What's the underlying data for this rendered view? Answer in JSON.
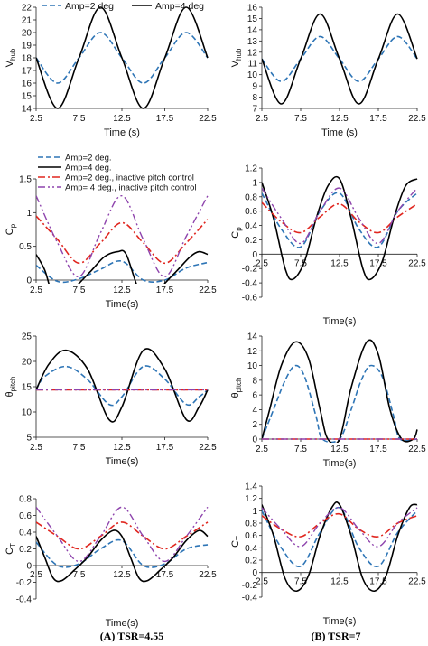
{
  "captions": {
    "left": "(A) TSR=4.55",
    "right": "(B) TSR=7"
  },
  "styles": {
    "a2": {
      "color": "#2e75b6",
      "dash": "6,3",
      "width": 1.6
    },
    "a4": {
      "color": "#000000",
      "dash": "",
      "width": 1.6
    },
    "a2i": {
      "color": "#e0261f",
      "dash": "8,3,2,3",
      "width": 1.6
    },
    "a4i": {
      "color": "#8e44ad",
      "dash": "8,3,2,3,2,3",
      "width": 1.4
    }
  },
  "chart_data": [
    {
      "type": "line",
      "id": "vhub-a",
      "xlabel": "Time (s)",
      "ylabel": "V",
      "ylabel_sub": "hub",
      "xlim": [
        2.5,
        22.5
      ],
      "ylim": [
        14,
        22
      ],
      "xticks": [
        2.5,
        7.5,
        12.5,
        17.5,
        22.5
      ],
      "yticks": [
        14,
        15,
        16,
        17,
        18,
        19,
        20,
        21,
        22
      ],
      "xaxis_at": 14,
      "legend": {
        "position": "top",
        "items": [
          "a2",
          "a4"
        ]
      },
      "series": [
        {
          "key": "a2",
          "name": "Amp=2 deg",
          "x": [
            2.5,
            5,
            7.5,
            10,
            12.5,
            15,
            17.5,
            20,
            22.5
          ],
          "y": [
            18,
            16,
            18,
            20,
            18,
            16,
            18,
            20,
            18
          ]
        },
        {
          "key": "a4",
          "name": "Amp=4 deg",
          "x": [
            2.5,
            5,
            7.5,
            10,
            12.5,
            15,
            17.5,
            20,
            22.5
          ],
          "y": [
            18,
            14,
            18,
            22,
            18,
            14,
            18,
            22,
            18
          ]
        }
      ]
    },
    {
      "type": "line",
      "id": "vhub-b",
      "xlabel": "Time (s)",
      "ylabel": "V",
      "ylabel_sub": "hub",
      "xlim": [
        2.5,
        22.5
      ],
      "ylim": [
        7,
        16
      ],
      "xticks": [
        2.5,
        7.5,
        12.5,
        17.5,
        22.5
      ],
      "yticks": [
        7,
        8,
        9,
        10,
        11,
        12,
        13,
        14,
        15,
        16
      ],
      "xaxis_at": 7,
      "series": [
        {
          "key": "a2",
          "name": "Amp=2 deg",
          "x": [
            2.5,
            5,
            7.5,
            10,
            12.5,
            15,
            17.5,
            20,
            22.5
          ],
          "y": [
            11.4,
            9.4,
            11.4,
            13.4,
            11.4,
            9.4,
            11.4,
            13.4,
            11.4
          ]
        },
        {
          "key": "a4",
          "name": "Amp=4 deg",
          "x": [
            2.5,
            5,
            7.5,
            10,
            12.5,
            15,
            17.5,
            20,
            22.5
          ],
          "y": [
            11.4,
            7.4,
            11.4,
            15.4,
            11.4,
            7.4,
            11.4,
            15.4,
            11.4
          ]
        }
      ]
    },
    {
      "type": "line",
      "id": "cp-a",
      "xlabel": "Time(s)",
      "ylabel": "C",
      "ylabel_sub": "p",
      "xlim": [
        2.5,
        22.5
      ],
      "ylim": [
        0,
        1.5
      ],
      "xticks": [
        2.5,
        7.5,
        12.5,
        17.5,
        22.5
      ],
      "yticks": [
        0,
        0.5,
        1,
        1.5
      ],
      "xaxis_at": 0,
      "legend": {
        "position": "top-left",
        "items": [
          "a2",
          "a4",
          "a2i",
          "a4i"
        ]
      },
      "series": [
        {
          "key": "a2",
          "name": "Amp=2 deg.",
          "x": [
            2.5,
            5,
            7.5,
            10,
            12.5,
            15,
            17.5,
            20,
            22.5
          ],
          "y": [
            0.22,
            -0.02,
            0.02,
            0.16,
            0.28,
            0.0,
            0.0,
            0.18,
            0.26
          ]
        },
        {
          "key": "a4",
          "name": "Amp=4 deg.",
          "x": [
            2.5,
            3.5,
            4.5,
            6,
            7.5,
            9,
            10.5,
            12,
            13,
            14.5,
            16,
            17.5,
            19,
            20.5,
            21.5,
            22.5
          ],
          "y": [
            0.38,
            0.15,
            -0.22,
            -0.25,
            -0.05,
            0.15,
            0.35,
            0.42,
            0.38,
            -0.15,
            -0.28,
            -0.05,
            0.15,
            0.35,
            0.42,
            0.38
          ]
        },
        {
          "key": "a2i",
          "name": "Amp=2 deg., inactive pitch control",
          "x": [
            2.5,
            5,
            7.5,
            10,
            12.5,
            15,
            17.5,
            20,
            22.5
          ],
          "y": [
            0.95,
            0.6,
            0.25,
            0.55,
            0.85,
            0.55,
            0.25,
            0.55,
            0.9
          ]
        },
        {
          "key": "a4i",
          "name": "Amp= 4 deg., inactive pitch control",
          "x": [
            2.5,
            5,
            7.5,
            10,
            12.5,
            15,
            17.5,
            20,
            22.5
          ],
          "y": [
            1.25,
            0.55,
            0.05,
            0.7,
            1.25,
            0.6,
            0.05,
            0.65,
            1.25
          ]
        }
      ]
    },
    {
      "type": "line",
      "id": "cp-b",
      "xlabel": "Time(s)",
      "ylabel": "C",
      "ylabel_sub": "p",
      "xlim": [
        2.5,
        22.5
      ],
      "ylim": [
        -0.6,
        1.2
      ],
      "xticks": [
        2.5,
        7.5,
        12.5,
        17.5,
        22.5
      ],
      "yticks": [
        -0.6,
        -0.4,
        -0.2,
        0,
        0.2,
        0.4,
        0.6,
        0.8,
        1,
        1.2
      ],
      "xaxis_at": 0,
      "series": [
        {
          "key": "a2",
          "name": "Amp=2 deg.",
          "x": [
            2.5,
            5,
            7.5,
            10,
            12.5,
            15,
            17.5,
            20,
            22.5
          ],
          "y": [
            0.85,
            0.35,
            0.1,
            0.6,
            0.85,
            0.35,
            0.1,
            0.6,
            0.85
          ]
        },
        {
          "key": "a4",
          "name": "Amp=4 deg.",
          "x": [
            2.5,
            4,
            5.5,
            6.5,
            8,
            9.5,
            11,
            12.5,
            14,
            15.5,
            16.5,
            18,
            19.5,
            21,
            22.5
          ],
          "y": [
            1.0,
            0.5,
            -0.2,
            -0.35,
            -0.1,
            0.5,
            0.95,
            1.05,
            0.5,
            -0.2,
            -0.35,
            -0.1,
            0.5,
            0.95,
            1.05
          ]
        },
        {
          "key": "a2i",
          "name": "Amp=2 deg., inactive pitch control",
          "x": [
            2.5,
            5,
            7.5,
            10,
            12.5,
            15,
            17.5,
            20,
            22.5
          ],
          "y": [
            0.72,
            0.45,
            0.3,
            0.52,
            0.7,
            0.45,
            0.3,
            0.52,
            0.7
          ]
        },
        {
          "key": "a4i",
          "name": "Amp= 4 deg., inactive pitch control",
          "x": [
            2.5,
            5,
            7.5,
            10,
            12.5,
            15,
            17.5,
            20,
            22.5
          ],
          "y": [
            0.92,
            0.5,
            0.15,
            0.6,
            0.92,
            0.5,
            0.15,
            0.6,
            0.92
          ]
        }
      ]
    },
    {
      "type": "line",
      "id": "pitch-a",
      "xlabel": "Time(s)",
      "ylabel": "θ",
      "ylabel_sub": "pitch",
      "xlim": [
        2.5,
        22.5
      ],
      "ylim": [
        5,
        25
      ],
      "xticks": [
        2.5,
        7.5,
        12.5,
        17.5,
        22.5
      ],
      "yticks": [
        5,
        10,
        15,
        20,
        25
      ],
      "xaxis_at": 5,
      "series": [
        {
          "key": "a2",
          "name": "Amp=2 deg.",
          "x": [
            2.5,
            3.5,
            6,
            8.5,
            11,
            12.5,
            15,
            17.5,
            20,
            21.5,
            22.5
          ],
          "y": [
            14.4,
            17,
            19,
            16.4,
            11.5,
            13,
            19,
            16.5,
            11.5,
            13,
            14.4
          ]
        },
        {
          "key": "a4",
          "name": "Amp=4 deg.",
          "x": [
            2.5,
            4,
            6,
            8.5,
            11,
            12.5,
            15,
            17.5,
            20,
            21.5,
            22.5
          ],
          "y": [
            14.4,
            19.5,
            22.2,
            18.5,
            8.5,
            11,
            22.2,
            18.5,
            8.5,
            11,
            14.4
          ]
        },
        {
          "key": "a2i",
          "name": "Amp=2 deg., inactive pitch control",
          "x": [
            2.5,
            22.5
          ],
          "y": [
            14.4,
            14.4
          ]
        },
        {
          "key": "a4i",
          "name": "Amp= 4 deg., inactive pitch control",
          "x": [
            2.5,
            22.5
          ],
          "y": [
            14.4,
            14.4
          ]
        }
      ]
    },
    {
      "type": "line",
      "id": "pitch-b",
      "xlabel": "Time(s)",
      "ylabel": "θ",
      "ylabel_sub": "pitch",
      "xlim": [
        2.5,
        22.5
      ],
      "ylim": [
        0,
        14
      ],
      "xticks": [
        2.5,
        7.5,
        12.5,
        17.5,
        22.5
      ],
      "yticks": [
        0,
        2,
        4,
        6,
        8,
        10,
        12,
        14
      ],
      "xaxis_at": 0,
      "series": [
        {
          "key": "a2",
          "name": "Amp=2 deg.",
          "x": [
            2.5,
            4,
            5.5,
            6.8,
            8,
            9.5,
            10.3,
            12.5,
            14,
            15.3,
            16.5,
            18,
            19.5,
            20.3,
            22.5
          ],
          "y": [
            0,
            4,
            8,
            10,
            8.5,
            3,
            0,
            0,
            4,
            8,
            10,
            8.5,
            3,
            0,
            0
          ]
        },
        {
          "key": "a4",
          "name": "Amp=4 deg.",
          "x": [
            2.5,
            3.5,
            5,
            6.8,
            8.5,
            10,
            11,
            12.5,
            14,
            16,
            17.5,
            19,
            20.5,
            22,
            22.5
          ],
          "y": [
            0,
            4,
            10,
            13.2,
            11,
            4,
            0,
            0,
            7,
            13.2,
            11.5,
            4,
            0,
            0,
            1.3
          ]
        },
        {
          "key": "a2i",
          "name": "Amp=2 deg., inactive pitch control",
          "x": [
            2.5,
            22.5
          ],
          "y": [
            0,
            0
          ]
        },
        {
          "key": "a4i",
          "name": "Amp= 4 deg., inactive pitch control",
          "x": [
            2.5,
            22.5
          ],
          "y": [
            0,
            0
          ]
        }
      ]
    },
    {
      "type": "line",
      "id": "ct-a",
      "xlabel": "Time(s)",
      "ylabel": "C",
      "ylabel_sub": "T",
      "xlim": [
        2.5,
        22.5
      ],
      "ylim": [
        -0.4,
        0.8
      ],
      "xticks": [
        2.5,
        7.5,
        12.5,
        17.5,
        22.5
      ],
      "yticks": [
        -0.4,
        -0.2,
        0,
        0.2,
        0.4,
        0.6,
        0.8
      ],
      "xaxis_at": 0,
      "series": [
        {
          "key": "a2",
          "name": "Amp=2 deg.",
          "x": [
            2.5,
            5,
            7.5,
            10,
            12.5,
            15,
            17.5,
            20,
            22.5
          ],
          "y": [
            0.28,
            0.0,
            0.02,
            0.2,
            0.3,
            0.0,
            0.02,
            0.2,
            0.25
          ]
        },
        {
          "key": "a4",
          "name": "Amp=4 deg.",
          "x": [
            2.5,
            3.5,
            4.5,
            5.5,
            7,
            8.5,
            10,
            11.5,
            12.5,
            13.5,
            14.5,
            15.5,
            17,
            18.5,
            20,
            21.5,
            22.5
          ],
          "y": [
            0.35,
            0.1,
            -0.15,
            -0.18,
            -0.05,
            0.1,
            0.3,
            0.42,
            0.35,
            0.1,
            -0.15,
            -0.18,
            -0.05,
            0.1,
            0.3,
            0.42,
            0.35
          ]
        },
        {
          "key": "a2i",
          "name": "Amp=2 deg., inactive pitch control",
          "x": [
            2.5,
            5,
            7.5,
            10,
            12.5,
            15,
            17.5,
            20,
            22.5
          ],
          "y": [
            0.52,
            0.35,
            0.2,
            0.35,
            0.52,
            0.35,
            0.2,
            0.35,
            0.52
          ]
        },
        {
          "key": "a4i",
          "name": "Amp= 4 deg., inactive pitch control",
          "x": [
            2.5,
            5,
            7.5,
            10,
            12.5,
            15,
            17.5,
            20,
            22.5
          ],
          "y": [
            0.7,
            0.35,
            0.05,
            0.35,
            0.7,
            0.35,
            0.05,
            0.35,
            0.7
          ]
        }
      ]
    },
    {
      "type": "line",
      "id": "ct-b",
      "xlabel": "Time(s)",
      "ylabel": "C",
      "ylabel_sub": "T",
      "xlim": [
        2.5,
        22.5
      ],
      "ylim": [
        -0.4,
        1.4
      ],
      "xticks": [
        2.5,
        7.5,
        12.5,
        17.5,
        22.5
      ],
      "yticks": [
        -0.4,
        -0.2,
        0,
        0.2,
        0.4,
        0.6,
        0.8,
        1,
        1.2,
        1.4
      ],
      "xaxis_at": 0,
      "series": [
        {
          "key": "a2",
          "name": "Amp=2 deg.",
          "x": [
            2.5,
            5,
            7.5,
            10,
            12.5,
            15,
            17.5,
            20,
            22.5
          ],
          "y": [
            1.0,
            0.4,
            0.1,
            0.65,
            1.05,
            0.4,
            0.1,
            0.65,
            1.0
          ]
        },
        {
          "key": "a4",
          "name": "Amp=4 deg.",
          "x": [
            2.5,
            4,
            5.5,
            7,
            8.5,
            10,
            11.5,
            12.5,
            14,
            15.5,
            17,
            18.5,
            20,
            21.5,
            22.5
          ],
          "y": [
            1.1,
            0.6,
            -0.1,
            -0.3,
            -0.05,
            0.6,
            1.05,
            1.1,
            0.6,
            -0.1,
            -0.3,
            -0.05,
            0.6,
            1.05,
            1.1
          ]
        },
        {
          "key": "a2i",
          "name": "Amp=2 deg., inactive pitch control",
          "x": [
            2.5,
            5,
            7.5,
            10,
            12.5,
            15,
            17.5,
            20,
            22.5
          ],
          "y": [
            0.92,
            0.7,
            0.58,
            0.8,
            0.95,
            0.7,
            0.58,
            0.8,
            0.92
          ]
        },
        {
          "key": "a4i",
          "name": "Amp= 4 deg., inactive pitch control",
          "x": [
            2.5,
            5,
            7.5,
            10,
            12.5,
            15,
            17.5,
            20,
            22.5
          ],
          "y": [
            1.05,
            0.7,
            0.42,
            0.8,
            1.05,
            0.7,
            0.42,
            0.8,
            1.05
          ]
        }
      ]
    }
  ]
}
